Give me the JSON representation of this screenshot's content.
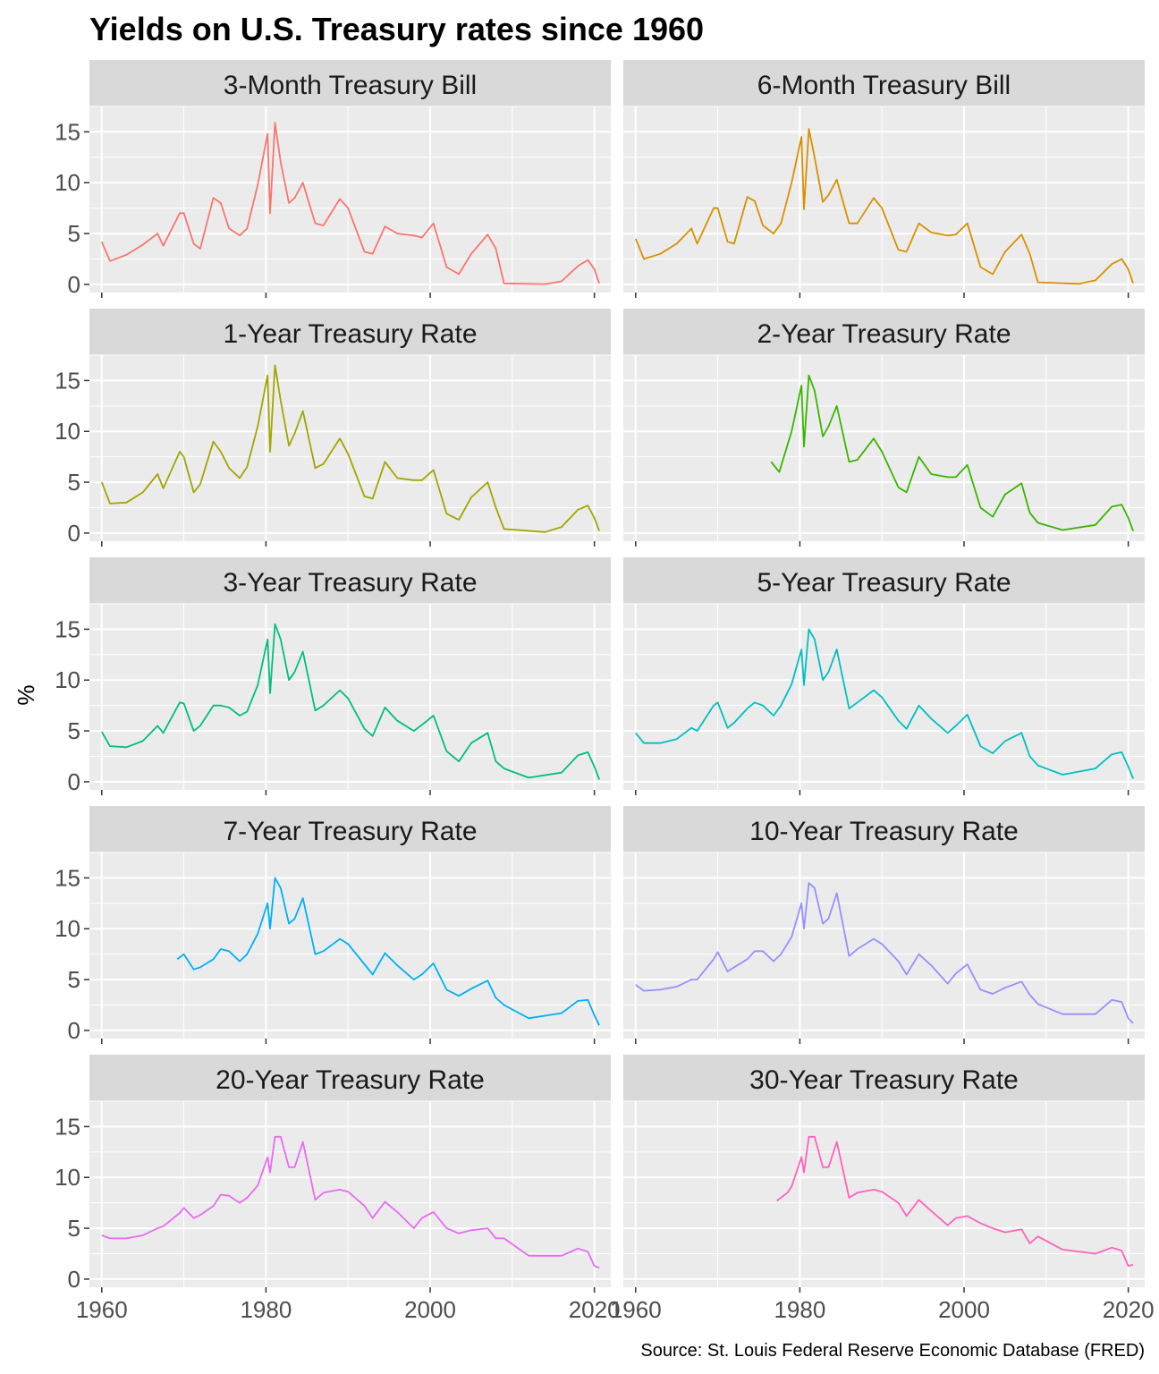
{
  "chart_data": {
    "type": "line",
    "title": "Yields on U.S. Treasury rates since 1960",
    "ylabel": "%",
    "xlabel": "",
    "caption": "Source: St. Louis Federal Reserve Economic Database (FRED)",
    "xlim": [
      1958.5,
      2022.0
    ],
    "ylim": [
      -0.8,
      17.5
    ],
    "x_ticks": [
      1960,
      1980,
      2000,
      2020
    ],
    "y_ticks": [
      0,
      5,
      10,
      15
    ],
    "grid": true,
    "facet_layout": {
      "rows": 5,
      "cols": 2
    },
    "series": [
      {
        "name": "3-Month Treasury Bill",
        "color": "#F8766D",
        "x": [
          1960,
          1961,
          1963,
          1965,
          1966.8,
          1967.5,
          1969.5,
          1970,
          1971.2,
          1972,
          1973.6,
          1974.5,
          1975.5,
          1976.8,
          1977.7,
          1979,
          1980.2,
          1980.5,
          1981.1,
          1981.8,
          1982.8,
          1983.5,
          1984.5,
          1986,
          1987,
          1989,
          1990,
          1992,
          1993,
          1994.5,
          1996,
          1998,
          1999,
          2000.4,
          2002,
          2003.5,
          2005,
          2007,
          2008,
          2009,
          2014,
          2016,
          2018,
          2019.2,
          2020,
          2020.6
        ],
        "y": [
          4.2,
          2.3,
          2.9,
          3.9,
          5.0,
          3.8,
          7.0,
          7.0,
          4.0,
          3.5,
          8.5,
          8.0,
          5.5,
          4.8,
          5.5,
          9.8,
          14.8,
          7.0,
          15.9,
          12.0,
          8.0,
          8.5,
          10.0,
          6.0,
          5.8,
          8.4,
          7.5,
          3.2,
          3.0,
          5.7,
          5.0,
          4.8,
          4.6,
          6.0,
          1.7,
          1.0,
          3.0,
          4.9,
          3.5,
          0.1,
          0.03,
          0.3,
          1.8,
          2.4,
          1.5,
          0.1
        ]
      },
      {
        "name": "6-Month Treasury Bill",
        "color": "#D89000",
        "x": [
          1960,
          1961,
          1963,
          1965,
          1966.8,
          1967.5,
          1969.5,
          1970,
          1971.2,
          1972,
          1973.6,
          1974.5,
          1975.5,
          1976.8,
          1977.7,
          1979,
          1980.2,
          1980.5,
          1981.1,
          1981.8,
          1982.8,
          1983.5,
          1984.5,
          1986,
          1987,
          1989,
          1990,
          1992,
          1993,
          1994.5,
          1996,
          1998,
          1999,
          2000.4,
          2002,
          2003.5,
          2005,
          2007,
          2008,
          2009,
          2014,
          2016,
          2018,
          2019.2,
          2020,
          2020.6
        ],
        "y": [
          4.5,
          2.5,
          3.0,
          4.0,
          5.5,
          4.0,
          7.5,
          7.5,
          4.2,
          4.0,
          8.6,
          8.2,
          5.8,
          5.0,
          6.0,
          10.0,
          14.5,
          7.4,
          15.3,
          12.5,
          8.1,
          8.8,
          10.3,
          6.0,
          6.0,
          8.5,
          7.5,
          3.4,
          3.2,
          6.0,
          5.1,
          4.8,
          4.9,
          6.0,
          1.7,
          1.0,
          3.2,
          4.9,
          3.0,
          0.2,
          0.05,
          0.4,
          2.0,
          2.5,
          1.5,
          0.1
        ]
      },
      {
        "name": "1-Year Treasury Rate",
        "color": "#A3A500",
        "x": [
          1960,
          1961,
          1963,
          1965,
          1966.8,
          1967.5,
          1969.5,
          1970,
          1971.2,
          1972,
          1973.6,
          1974.5,
          1975.5,
          1976.8,
          1977.7,
          1979,
          1980.2,
          1980.5,
          1981.1,
          1981.8,
          1982.8,
          1983.5,
          1984.5,
          1986,
          1987,
          1989,
          1990,
          1992,
          1993,
          1994.5,
          1996,
          1998,
          1999,
          2000.4,
          2002,
          2003.5,
          2005,
          2007,
          2008,
          2009,
          2014,
          2016,
          2018,
          2019.2,
          2020,
          2020.6
        ],
        "y": [
          5.0,
          2.9,
          3.0,
          4.0,
          5.8,
          4.4,
          8.0,
          7.5,
          4.0,
          4.8,
          9.0,
          8.0,
          6.4,
          5.4,
          6.5,
          10.5,
          15.5,
          8.0,
          16.5,
          13.0,
          8.6,
          9.8,
          12.0,
          6.4,
          6.8,
          9.3,
          7.8,
          3.6,
          3.4,
          7.0,
          5.4,
          5.2,
          5.2,
          6.2,
          1.9,
          1.3,
          3.5,
          5.0,
          2.5,
          0.4,
          0.1,
          0.6,
          2.3,
          2.7,
          1.5,
          0.2
        ]
      },
      {
        "name": "2-Year Treasury Rate",
        "color": "#39B600",
        "x": [
          1976.5,
          1977.5,
          1979,
          1980.2,
          1980.5,
          1981.1,
          1981.8,
          1982.8,
          1983.5,
          1984.5,
          1986,
          1987,
          1989,
          1990,
          1992,
          1993,
          1994.5,
          1996,
          1998,
          1999,
          2000.4,
          2002,
          2003.5,
          2005,
          2007,
          2008,
          2009,
          2012,
          2016,
          2018,
          2019.2,
          2020,
          2020.6
        ],
        "y": [
          7.0,
          6.0,
          10.0,
          14.5,
          8.5,
          15.5,
          14.0,
          9.5,
          10.5,
          12.5,
          7.0,
          7.2,
          9.3,
          8.0,
          4.5,
          4.0,
          7.5,
          5.8,
          5.5,
          5.5,
          6.7,
          2.5,
          1.6,
          3.8,
          4.9,
          2.0,
          1.0,
          0.3,
          0.8,
          2.6,
          2.8,
          1.5,
          0.2
        ]
      },
      {
        "name": "3-Year Treasury Rate",
        "color": "#00BF7D",
        "x": [
          1960,
          1961,
          1963,
          1965,
          1966.8,
          1967.5,
          1969.5,
          1970,
          1971.2,
          1972,
          1973.6,
          1974.5,
          1975.5,
          1976.8,
          1977.7,
          1979,
          1980.2,
          1980.5,
          1981.1,
          1981.8,
          1982.8,
          1983.5,
          1984.5,
          1986,
          1987,
          1989,
          1990,
          1992,
          1993,
          1994.5,
          1996,
          1998,
          1999,
          2000.4,
          2002,
          2003.5,
          2005,
          2007,
          2008,
          2009,
          2012,
          2016,
          2018,
          2019.2,
          2020,
          2020.6
        ],
        "y": [
          4.9,
          3.5,
          3.4,
          4.0,
          5.5,
          4.8,
          7.8,
          7.7,
          5.0,
          5.5,
          7.5,
          7.5,
          7.3,
          6.5,
          6.9,
          9.5,
          14.0,
          8.7,
          15.5,
          14.0,
          10.0,
          10.8,
          12.8,
          7.0,
          7.5,
          9.0,
          8.2,
          5.2,
          4.5,
          7.3,
          6.0,
          5.0,
          5.6,
          6.5,
          3.0,
          2.0,
          3.8,
          4.8,
          2.0,
          1.3,
          0.4,
          0.9,
          2.6,
          2.9,
          1.5,
          0.2
        ]
      },
      {
        "name": "5-Year Treasury Rate",
        "color": "#00BFC4",
        "x": [
          1960,
          1961,
          1963,
          1965,
          1966.8,
          1967.5,
          1969.5,
          1970,
          1971.2,
          1972,
          1973.6,
          1974.5,
          1975.5,
          1976.8,
          1977.7,
          1979,
          1980.2,
          1980.5,
          1981.1,
          1981.8,
          1982.8,
          1983.5,
          1984.5,
          1986,
          1987,
          1989,
          1990,
          1992,
          1993,
          1994.5,
          1996,
          1998,
          1999,
          2000.4,
          2002,
          2003.5,
          2005,
          2007,
          2008,
          2009,
          2012,
          2016,
          2018,
          2019.2,
          2020,
          2020.6
        ],
        "y": [
          4.8,
          3.8,
          3.8,
          4.2,
          5.3,
          5.0,
          7.5,
          7.8,
          5.3,
          5.8,
          7.2,
          7.8,
          7.5,
          6.5,
          7.5,
          9.6,
          13.0,
          9.5,
          15.0,
          14.0,
          10.0,
          10.8,
          13.0,
          7.2,
          7.8,
          9.0,
          8.3,
          6.0,
          5.2,
          7.5,
          6.2,
          4.8,
          5.5,
          6.6,
          3.5,
          2.8,
          4.0,
          4.8,
          2.5,
          1.6,
          0.7,
          1.3,
          2.7,
          2.9,
          1.5,
          0.3
        ]
      },
      {
        "name": "7-Year Treasury Rate",
        "color": "#00B0F6",
        "x": [
          1969.2,
          1970,
          1971.2,
          1972,
          1973.6,
          1974.5,
          1975.5,
          1976.8,
          1977.7,
          1979,
          1980.2,
          1980.5,
          1981.1,
          1981.8,
          1982.8,
          1983.5,
          1984.5,
          1986,
          1987,
          1989,
          1990,
          1992,
          1993,
          1994.5,
          1996,
          1998,
          1999,
          2000.4,
          2002,
          2003.5,
          2005,
          2007,
          2008,
          2009,
          2012,
          2016,
          2018,
          2019.2,
          2020,
          2020.6
        ],
        "y": [
          7.0,
          7.5,
          6.0,
          6.2,
          7.0,
          8.0,
          7.8,
          6.8,
          7.5,
          9.5,
          12.5,
          10.0,
          15.0,
          14.0,
          10.5,
          11.0,
          13.0,
          7.5,
          7.8,
          9.0,
          8.5,
          6.5,
          5.5,
          7.6,
          6.4,
          5.0,
          5.5,
          6.6,
          4.0,
          3.4,
          4.1,
          4.9,
          3.2,
          2.5,
          1.2,
          1.7,
          2.9,
          3.0,
          1.5,
          0.5
        ]
      },
      {
        "name": "10-Year Treasury Rate",
        "color": "#9590FF",
        "x": [
          1960,
          1961,
          1963,
          1965,
          1966.8,
          1967.5,
          1969.5,
          1970,
          1971.2,
          1972,
          1973.6,
          1974.5,
          1975.5,
          1976.8,
          1977.7,
          1979,
          1980.2,
          1980.5,
          1981.1,
          1981.8,
          1982.8,
          1983.5,
          1984.5,
          1986,
          1987,
          1989,
          1990,
          1992,
          1993,
          1994.5,
          1996,
          1998,
          1999,
          2000.4,
          2002,
          2003.5,
          2005,
          2007,
          2008,
          2009,
          2012,
          2016,
          2018,
          2019.2,
          2020,
          2020.6
        ],
        "y": [
          4.5,
          3.9,
          4.0,
          4.3,
          5.0,
          5.0,
          7.0,
          7.7,
          5.8,
          6.2,
          7.0,
          7.8,
          7.8,
          6.8,
          7.5,
          9.2,
          12.5,
          10.0,
          14.5,
          14.0,
          10.5,
          11.0,
          13.5,
          7.3,
          8.0,
          9.0,
          8.5,
          6.8,
          5.5,
          7.5,
          6.4,
          4.6,
          5.6,
          6.5,
          4.0,
          3.6,
          4.2,
          4.8,
          3.5,
          2.6,
          1.6,
          1.6,
          3.0,
          2.8,
          1.2,
          0.7
        ]
      },
      {
        "name": "20-Year Treasury Rate",
        "color": "#E76BF3",
        "x": [
          1960,
          1961,
          1963,
          1965,
          1966.8,
          1967.5,
          1969.5,
          1970,
          1971.2,
          1972,
          1973.6,
          1974.5,
          1975.5,
          1976.8,
          1977.7,
          1979,
          1980.2,
          1980.5,
          1981.1,
          1981.8,
          1982.8,
          1983.5,
          1984.5,
          1986,
          1987,
          1989,
          1990,
          1992,
          1993,
          1994.5,
          1996,
          1998,
          1999,
          2000.4,
          2002,
          2003.5,
          2005,
          2007,
          2008,
          2009,
          2012,
          2016,
          2018,
          2019.2,
          2020,
          2020.6
        ],
        "y": [
          4.3,
          4.0,
          4.0,
          4.3,
          5.0,
          5.2,
          6.5,
          7.0,
          6.0,
          6.3,
          7.2,
          8.3,
          8.2,
          7.5,
          8.0,
          9.2,
          12.0,
          10.5,
          14.0,
          14.0,
          11.0,
          11.0,
          13.5,
          7.8,
          8.5,
          8.8,
          8.6,
          7.2,
          6.0,
          7.6,
          6.6,
          5.0,
          6.0,
          6.6,
          5.0,
          4.5,
          4.8,
          5.0,
          4.0,
          4.0,
          2.3,
          2.3,
          3.0,
          2.7,
          1.3,
          1.1
        ]
      },
      {
        "name": "30-Year Treasury Rate",
        "color": "#FF62BC",
        "x": [
          1977.2,
          1978.5,
          1979,
          1980.2,
          1980.5,
          1981.1,
          1981.8,
          1982.8,
          1983.5,
          1984.5,
          1986,
          1987,
          1989,
          1990,
          1992,
          1993,
          1994.5,
          1996,
          1998,
          1999,
          2000.4,
          2002,
          2003.5,
          2005,
          2007,
          2008,
          2009,
          2012,
          2016,
          2018,
          2019.2,
          2020,
          2020.6
        ],
        "y": [
          7.7,
          8.5,
          9.1,
          12.0,
          10.5,
          14.0,
          14.0,
          11.0,
          11.0,
          13.5,
          8.0,
          8.5,
          8.8,
          8.6,
          7.5,
          6.2,
          7.8,
          6.7,
          5.3,
          6.0,
          6.2,
          5.5,
          5.0,
          4.6,
          4.9,
          3.5,
          4.2,
          2.9,
          2.5,
          3.1,
          2.8,
          1.3,
          1.4
        ]
      }
    ]
  }
}
